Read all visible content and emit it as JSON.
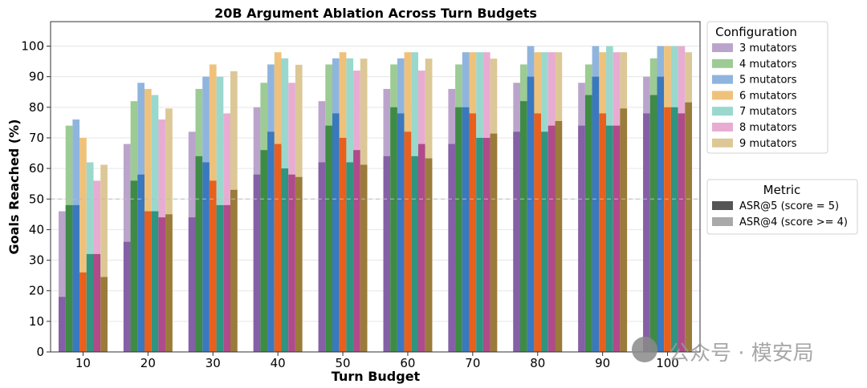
{
  "chart_data": {
    "type": "bar",
    "title": "20B Argument Ablation Across Turn Budgets",
    "xlabel": "Turn Budget",
    "ylabel": "Goals Reached (%)",
    "ylim": [
      0,
      108
    ],
    "yticks": [
      0,
      10,
      20,
      30,
      40,
      50,
      60,
      70,
      80,
      90,
      100
    ],
    "reference_line": 50,
    "categories": [
      "10",
      "20",
      "30",
      "40",
      "50",
      "60",
      "70",
      "80",
      "90",
      "100"
    ],
    "legend_config": {
      "title": "Configuration",
      "placement": "upper right, outside plot"
    },
    "legend_metric": {
      "title": "Metric",
      "items": [
        {
          "label": "ASR@5 (score = 5)",
          "color": "#555555"
        },
        {
          "label": "ASR@4 (score >= 4)",
          "color": "#a9a9a9"
        }
      ]
    },
    "series": [
      {
        "name": "3 mutators",
        "color_dark": "#8560a6",
        "color_light": "#bba4cc",
        "asr5": [
          18,
          36,
          44,
          58,
          62,
          64,
          68,
          72,
          74,
          78
        ],
        "asr4": [
          46,
          68,
          72,
          80,
          82,
          86,
          86,
          88,
          88,
          90
        ]
      },
      {
        "name": "4 mutators",
        "color_dark": "#3e8b46",
        "color_light": "#9ccb94",
        "asr5": [
          48,
          56,
          64,
          66,
          74,
          80,
          80,
          82,
          84,
          84
        ],
        "asr4": [
          74,
          82,
          86,
          88,
          94,
          94,
          94,
          94,
          94,
          96
        ]
      },
      {
        "name": "5 mutators",
        "color_dark": "#3a78bf",
        "color_light": "#8fb5de",
        "asr5": [
          48,
          58,
          62,
          72,
          78,
          78,
          80,
          90,
          90,
          90
        ],
        "asr4": [
          76,
          88,
          90,
          94,
          96,
          96,
          98,
          100,
          100,
          100
        ]
      },
      {
        "name": "6 mutators",
        "color_dark": "#e8601c",
        "color_light": "#efc27c",
        "asr5": [
          26,
          46,
          56,
          68,
          70,
          72,
          78,
          78,
          78,
          80
        ],
        "asr4": [
          70,
          86,
          94,
          98,
          98,
          98,
          98,
          98,
          98,
          100
        ]
      },
      {
        "name": "7 mutators",
        "color_dark": "#2f9480",
        "color_light": "#9ad8ce",
        "asr5": [
          32,
          46,
          48,
          60,
          62,
          64,
          70,
          72,
          74,
          80
        ],
        "asr4": [
          62,
          84,
          90,
          96,
          96,
          98,
          98,
          98,
          100,
          100
        ]
      },
      {
        "name": "8 mutators",
        "color_dark": "#b04a8a",
        "color_light": "#e8acd3",
        "asr5": [
          32,
          44,
          48,
          58,
          66,
          68,
          70,
          74,
          74,
          78
        ],
        "asr4": [
          56,
          76,
          78,
          88,
          92,
          92,
          98,
          98,
          98,
          100
        ]
      },
      {
        "name": "9 mutators",
        "color_dark": "#9a7b3a",
        "color_light": "#dcc896",
        "asr5": [
          24.5,
          45,
          53,
          57.2,
          61.2,
          63.3,
          71.4,
          75.5,
          79.6,
          81.6
        ],
        "asr4": [
          61.2,
          79.6,
          91.8,
          93.9,
          95.9,
          95.9,
          95.9,
          98,
          98,
          98
        ]
      }
    ]
  },
  "watermark": {
    "text": "公众号 · 模安局"
  }
}
